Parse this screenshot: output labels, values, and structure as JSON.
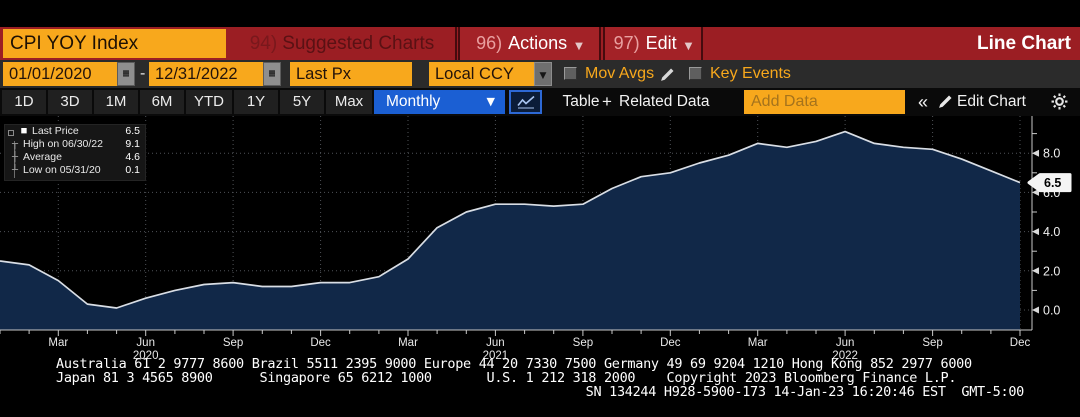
{
  "colors": {
    "accent_orange": "#f8a81c",
    "titlebar_red": "#9b1e23",
    "selected_blue": "#1b5fd3",
    "chart_fill": "#112848",
    "chart_line": "#d9dee5",
    "grid": "#4f5358",
    "axis": "#c9c9c9",
    "badge_bg": "#f4f4f4"
  },
  "titlebar": {
    "security": "CPI YOY Index",
    "suggested_num": "94)",
    "suggested_label": "Suggested Charts",
    "actions_num": "96)",
    "actions_label": "Actions",
    "edit_num": "97)",
    "edit_label": "Edit",
    "caret": "▼",
    "view_label": "Line Chart"
  },
  "controls": {
    "date_from": "01/01/2020",
    "date_sep": "-",
    "date_to": "12/31/2022",
    "price_field": "Last Px",
    "currency": "Local CCY",
    "caret": "▼",
    "mov_avgs": "Mov Avgs",
    "key_events": "Key Events"
  },
  "toolbar": {
    "periods": [
      "1D",
      "3D",
      "1M",
      "6M",
      "YTD",
      "1Y",
      "5Y",
      "Max"
    ],
    "frequency": "Monthly",
    "caret": "▼",
    "table": "Table",
    "related_plus": "+",
    "related_data": "Related Data",
    "add_data_placeholder": "Add Data",
    "collapse": "«",
    "edit_chart": "Edit Chart"
  },
  "chart_data": {
    "type": "area",
    "title": "CPI YOY Index",
    "frequency": "Monthly",
    "xlabel": "",
    "ylabel": "",
    "ylim": [
      0,
      9.9
    ],
    "grid": "dotted",
    "months": [
      "2020-01",
      "2020-02",
      "2020-03",
      "2020-04",
      "2020-05",
      "2020-06",
      "2020-07",
      "2020-08",
      "2020-09",
      "2020-10",
      "2020-11",
      "2020-12",
      "2021-01",
      "2021-02",
      "2021-03",
      "2021-04",
      "2021-05",
      "2021-06",
      "2021-07",
      "2021-08",
      "2021-09",
      "2021-10",
      "2021-11",
      "2021-12",
      "2022-01",
      "2022-02",
      "2022-03",
      "2022-04",
      "2022-05",
      "2022-06",
      "2022-07",
      "2022-08",
      "2022-09",
      "2022-10",
      "2022-11",
      "2022-12"
    ],
    "values": [
      2.5,
      2.3,
      1.5,
      0.3,
      0.1,
      0.6,
      1.0,
      1.3,
      1.4,
      1.2,
      1.2,
      1.4,
      1.4,
      1.7,
      2.6,
      4.2,
      5.0,
      5.4,
      5.4,
      5.3,
      5.4,
      6.2,
      6.8,
      7.0,
      7.5,
      7.9,
      8.5,
      8.3,
      8.6,
      9.1,
      8.5,
      8.3,
      8.2,
      7.7,
      7.1,
      6.5
    ],
    "xticks": [
      {
        "i": 2,
        "label": "Mar"
      },
      {
        "i": 5,
        "label": "Jun",
        "year": "2020"
      },
      {
        "i": 8,
        "label": "Sep"
      },
      {
        "i": 11,
        "label": "Dec"
      },
      {
        "i": 14,
        "label": "Mar"
      },
      {
        "i": 17,
        "label": "Jun",
        "year": "2021"
      },
      {
        "i": 20,
        "label": "Sep"
      },
      {
        "i": 23,
        "label": "Dec"
      },
      {
        "i": 26,
        "label": "Mar"
      },
      {
        "i": 29,
        "label": "Jun",
        "year": "2022"
      },
      {
        "i": 32,
        "label": "Sep"
      },
      {
        "i": 35,
        "label": "Dec"
      }
    ],
    "yticks": [
      {
        "v": 0,
        "label": "0.0"
      },
      {
        "v": 2,
        "label": "2.0"
      },
      {
        "v": 4,
        "label": "4.0"
      },
      {
        "v": 6,
        "label": "6.0"
      },
      {
        "v": 8,
        "label": "8.0"
      }
    ],
    "yticks_minor": [
      1,
      3,
      5,
      7,
      9
    ],
    "last_price": {
      "value": 6.5,
      "label": "6.5"
    },
    "legend": {
      "items": [
        {
          "marker": "■",
          "label": "Last Price",
          "value": "6.5"
        },
        {
          "marker": "┬",
          "label": "High on 06/30/22",
          "value": "9.1"
        },
        {
          "marker": "┼",
          "label": "Average",
          "value": "4.6"
        },
        {
          "marker": "┴",
          "label": "Low on 05/31/20",
          "value": "0.1"
        }
      ]
    }
  },
  "footer": {
    "line1": "Australia 61 2 9777 8600 Brazil 5511 2395 9000 Europe 44 20 7330 7500 Germany 49 69 9204 1210 Hong Kong 852 2977 6000",
    "line2": "Japan 81 3 4565 8900      Singapore 65 6212 1000       U.S. 1 212 318 2000    Copyright 2023 Bloomberg Finance L.P.",
    "line3": "SN 134244 H928-5900-173 14-Jan-23 16:20:46 EST  GMT-5:00"
  }
}
